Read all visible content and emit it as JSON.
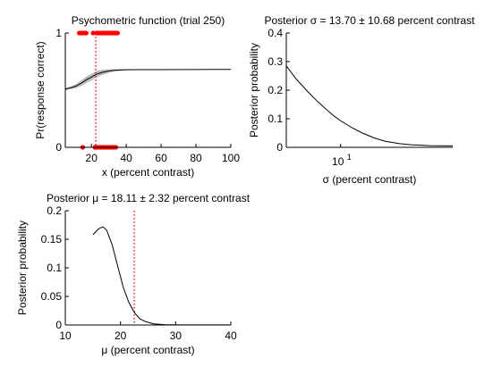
{
  "chart_data": [
    {
      "id": "psychometric",
      "type": "line",
      "title": "Psychometric function (trial 250)",
      "xlabel": "x (percent contrast)",
      "ylabel": "Pr(response correct)",
      "xlim": [
        5,
        100
      ],
      "ylim": [
        0,
        1
      ],
      "xticks": [
        20,
        40,
        60,
        80,
        100
      ],
      "yticks": [
        0,
        1
      ],
      "xtick_labels": [
        "20",
        "40",
        "60",
        "80",
        "100"
      ],
      "ytick_labels": [
        "0",
        "1"
      ],
      "series": [
        {
          "role": "mean-curve",
          "color": "#000000",
          "x": [
            5,
            8,
            11,
            14,
            17,
            20,
            23,
            26,
            29,
            32,
            35,
            40,
            45,
            50,
            60,
            70,
            80,
            90,
            100
          ],
          "y": [
            0.51,
            0.52,
            0.535,
            0.56,
            0.59,
            0.615,
            0.64,
            0.655,
            0.665,
            0.672,
            0.676,
            0.679,
            0.68,
            0.68,
            0.68,
            0.681,
            0.681,
            0.682,
            0.682
          ],
          "band": [
            0.01,
            0.012,
            0.018,
            0.024,
            0.028,
            0.03,
            0.028,
            0.024,
            0.018,
            0.012,
            0.008,
            0.005,
            0.004,
            0.003,
            0.002,
            0.002,
            0.002,
            0.002,
            0.002
          ],
          "band_color": "#bbbbbb"
        },
        {
          "role": "correct-trials",
          "color": "#ff0000",
          "x": [
            13,
            14,
            15,
            16,
            17,
            21,
            23,
            24,
            25,
            26,
            27,
            28,
            29,
            30,
            31,
            32,
            33,
            34,
            35
          ],
          "y": [
            1,
            1,
            1,
            1,
            1,
            1,
            1,
            1,
            1,
            1,
            1,
            1,
            1,
            1,
            1,
            1,
            1,
            1,
            1
          ]
        },
        {
          "role": "incorrect-trials",
          "color": "#ff0000",
          "x": [
            15,
            22,
            23,
            24,
            25,
            26,
            27,
            28,
            29,
            30,
            31,
            32,
            33,
            34
          ],
          "y": [
            0,
            0,
            0,
            0,
            0,
            0,
            0,
            0,
            0,
            0,
            0,
            0,
            0,
            0
          ]
        }
      ],
      "reference_line": {
        "x": 22.5,
        "color": "#ff0000",
        "style": "dotted"
      }
    },
    {
      "id": "posterior-sigma",
      "type": "line",
      "title": "Posterior σ = 13.70 ± 10.68 percent contrast",
      "xlabel": "σ (percent contrast)",
      "ylabel": "Posterior probability",
      "xscale": "log",
      "xlim": [
        4.3,
        57
      ],
      "ylim": [
        0,
        0.4
      ],
      "xticks": [
        10
      ],
      "xtick_labels": [
        "10"
      ],
      "xtick_superscript": "1",
      "xtick_base": "10",
      "yticks": [
        0,
        0.1,
        0.2,
        0.3,
        0.4
      ],
      "ytick_labels": [
        "0",
        "0.1",
        "0.2",
        "0.3",
        "0.4"
      ],
      "series": [
        {
          "color": "#000000",
          "x": [
            4.3,
            5,
            6,
            7,
            8,
            9,
            10,
            12,
            14,
            17,
            20,
            25,
            30,
            40,
            57
          ],
          "y": [
            0.285,
            0.24,
            0.195,
            0.16,
            0.133,
            0.11,
            0.093,
            0.068,
            0.05,
            0.032,
            0.021,
            0.013,
            0.009,
            0.006,
            0.005
          ]
        }
      ]
    },
    {
      "id": "posterior-mu",
      "type": "line",
      "title": "Posterior μ = 18.11 ± 2.32 percent contrast",
      "xlabel": "μ (percent contrast)",
      "ylabel": "Posterior probability",
      "xlim": [
        10,
        40
      ],
      "ylim": [
        0,
        0.2
      ],
      "xticks": [
        10,
        20,
        30,
        40
      ],
      "xtick_labels": [
        "10",
        "20",
        "30",
        "40"
      ],
      "yticks": [
        0,
        0.05,
        0.1,
        0.15,
        0.2
      ],
      "ytick_labels": [
        "0",
        "0.05",
        "0.1",
        "0.15",
        "0.2"
      ],
      "series": [
        {
          "color": "#000000",
          "x": [
            15,
            16,
            16.8,
            17.5,
            18.5,
            19.5,
            20.5,
            21.5,
            22.5,
            23.5,
            24.5,
            26,
            28,
            31,
            40
          ],
          "y": [
            0.158,
            0.168,
            0.172,
            0.166,
            0.14,
            0.103,
            0.066,
            0.04,
            0.022,
            0.011,
            0.006,
            0.002,
            0.0005,
            0.0002,
            0.0001
          ]
        }
      ],
      "reference_line": {
        "x": 22.5,
        "color": "#ff0000",
        "style": "dotted"
      }
    }
  ]
}
